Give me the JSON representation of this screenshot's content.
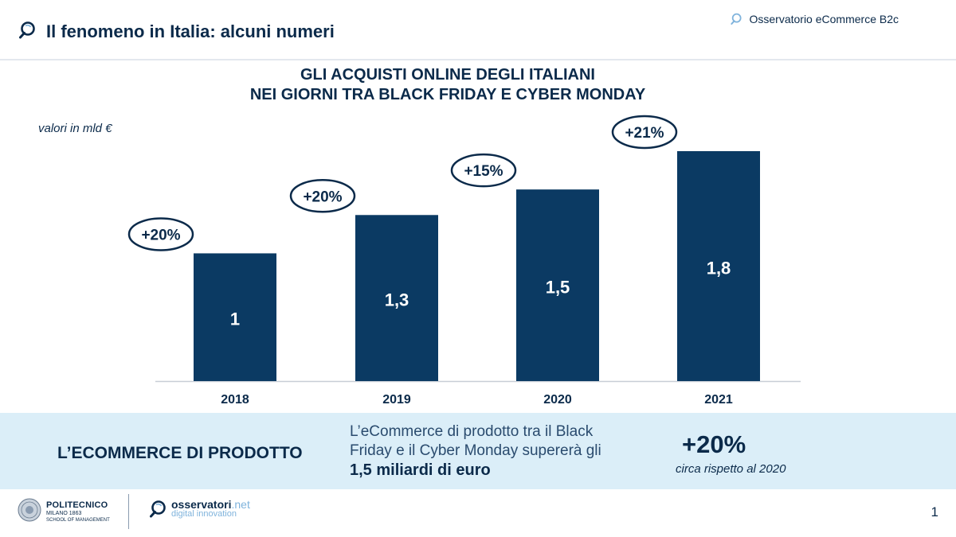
{
  "header": {
    "title": "Il fenomeno in Italia: alcuni numeri",
    "brand": "Osservatorio eCommerce B2c",
    "icon": "magnifier-icon"
  },
  "chart_data": {
    "type": "bar",
    "title_lines": [
      "GLI ACQUISTI ONLINE DEGLI ITALIANI",
      "NEI GIORNI TRA BLACK FRIDAY E CYBER MONDAY"
    ],
    "unit_label": "valori in mld €",
    "categories": [
      "2018",
      "2019",
      "2020",
      "2021"
    ],
    "values": [
      1.0,
      1.3,
      1.5,
      1.8
    ],
    "value_labels": [
      "1",
      "1,3",
      "1,5",
      "1,8"
    ],
    "growth_labels": [
      "+20%",
      "+20%",
      "+15%",
      "+21%"
    ],
    "ylim": [
      0,
      1.8
    ],
    "grid": false,
    "legend": "none",
    "bar_color": "#0b3a63"
  },
  "band": {
    "label": "L’ECOMMERCE DI PRODOTTO",
    "text_line1": "L’eCommerce di prodotto tra il Black",
    "text_line2": "Friday e il Cyber Monday supererà gli",
    "text_strong": "1,5 miliardi di euro",
    "pct": "+20%",
    "pct_note": "circa rispetto al 2020",
    "background": "#dbeef8"
  },
  "footer": {
    "poli_name": "POLITECNICO",
    "poli_city": "MILANO 1863",
    "poli_school": "SCHOOL OF MANAGEMENT",
    "osserv_name": "osservatori",
    "osserv_tld": ".net",
    "osserv_sub": "digital innovation",
    "page_number": "1"
  }
}
